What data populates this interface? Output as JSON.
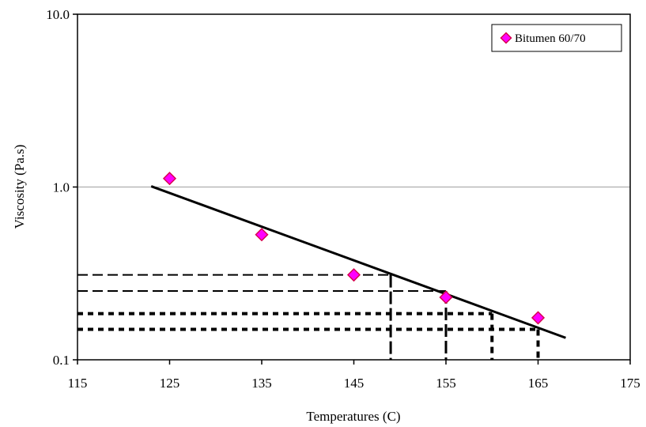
{
  "chart_data": {
    "type": "scatter",
    "title": "",
    "xlabel": "Temperatures (C)",
    "ylabel": "Viscosity  (Pa.s)",
    "x_scale": "linear",
    "y_scale": "log",
    "xlim": [
      115,
      175
    ],
    "ylim": [
      0.1,
      10.0
    ],
    "x_ticks": [
      "115",
      "125",
      "135",
      "145",
      "155",
      "165",
      "175"
    ],
    "y_ticks": [
      "0.1",
      "1.0",
      "10.0"
    ],
    "grid": "horizontal at 1.0",
    "legend_position": "top-right",
    "series": [
      {
        "name": "Bitumen 60/70",
        "marker": "diamond",
        "color": "#ff00ff",
        "edge_color": "#d7004f",
        "points": [
          {
            "x": 125,
            "y": 1.12
          },
          {
            "x": 135,
            "y": 0.53
          },
          {
            "x": 145,
            "y": 0.31
          },
          {
            "x": 155,
            "y": 0.23
          },
          {
            "x": 165,
            "y": 0.175
          }
        ]
      }
    ],
    "trendline": {
      "x": [
        123,
        168
      ],
      "y": [
        1.01,
        0.134
      ],
      "color": "#000000"
    },
    "reference_lines": [
      {
        "style": "dashed",
        "y": 0.31,
        "x": 149
      },
      {
        "style": "dashed",
        "y": 0.25,
        "x": 155
      },
      {
        "style": "dotted-heavy",
        "y": 0.185,
        "x": 160
      },
      {
        "style": "dotted-heavy",
        "y": 0.15,
        "x": 165
      }
    ]
  }
}
